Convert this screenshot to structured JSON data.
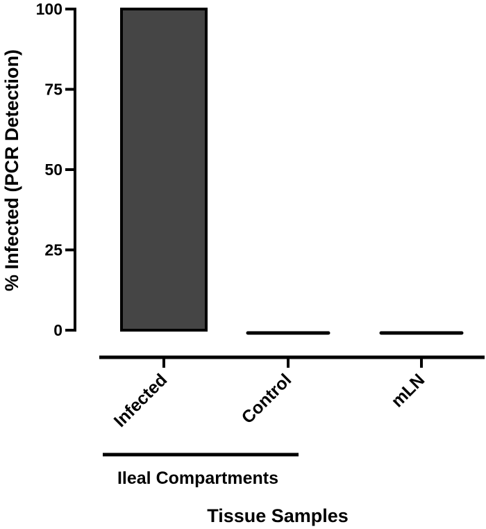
{
  "chart_data": {
    "type": "bar",
    "categories": [
      "Infected",
      "Control",
      "mLN"
    ],
    "values": [
      100,
      0,
      0
    ],
    "ylabel": "% Infected (PCR Detection)",
    "xlabel": "Tissue Samples",
    "ylim": [
      0,
      100
    ],
    "yticks": [
      0,
      25,
      50,
      75,
      100
    ],
    "group_label": "Ileal Compartments",
    "grid": false,
    "bar_color": "#454545"
  }
}
